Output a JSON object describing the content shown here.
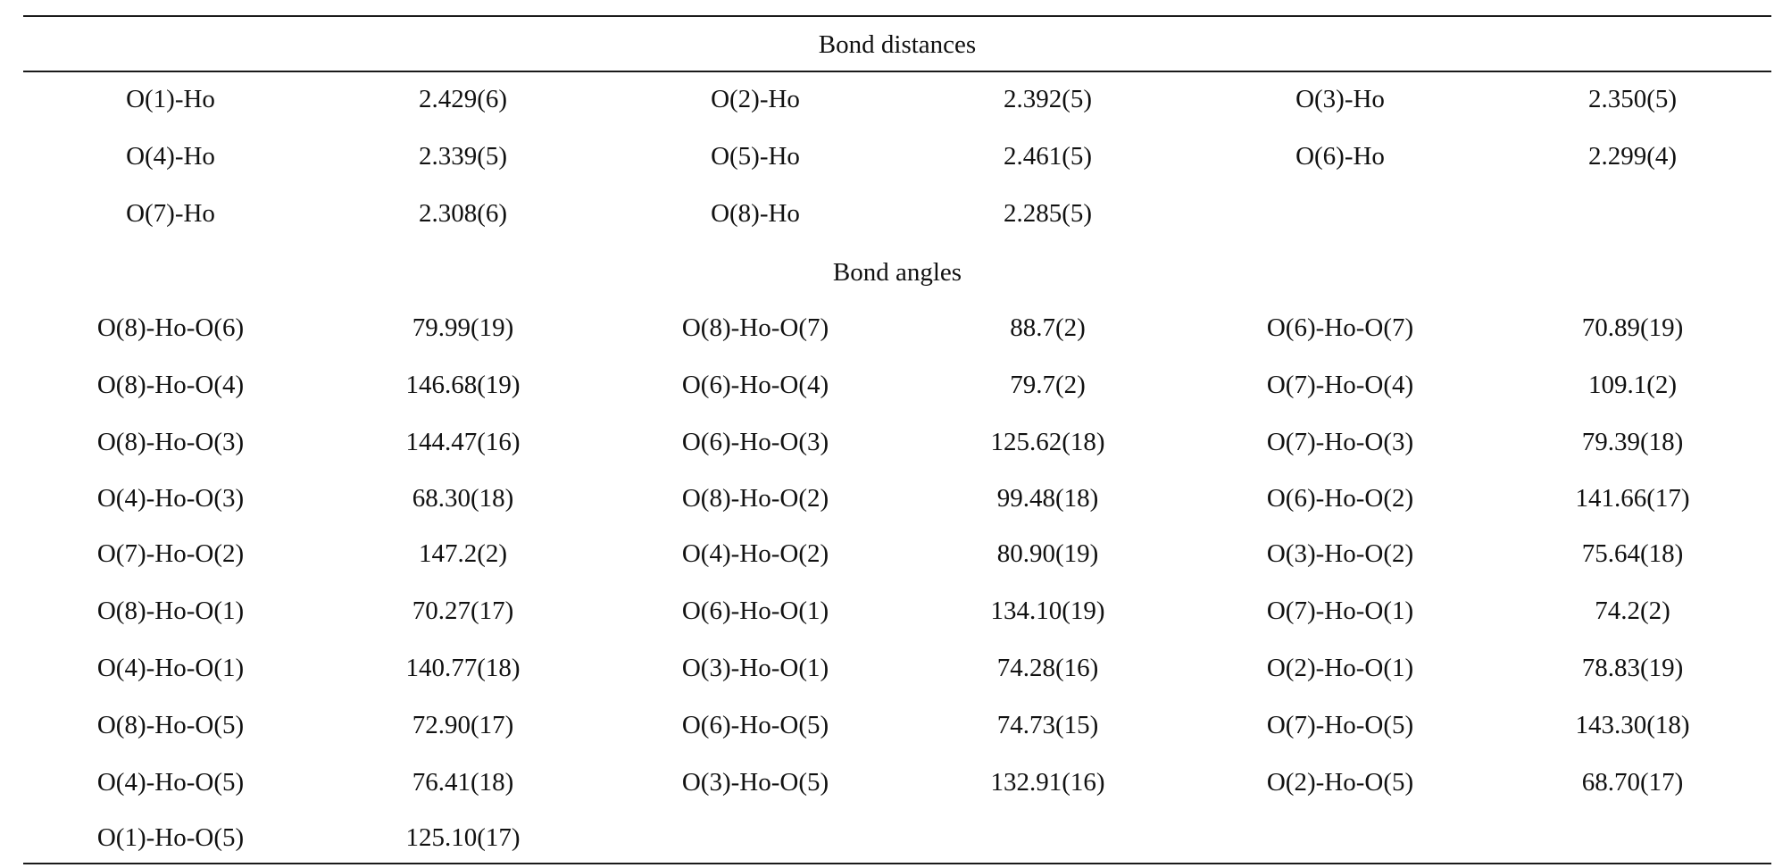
{
  "table": {
    "distances_title": "Bond distances",
    "angles_title": "Bond angles",
    "distances": [
      [
        "O(1)-Ho",
        "2.429(6)",
        "O(2)-Ho",
        "2.392(5)",
        "O(3)-Ho",
        "2.350(5)"
      ],
      [
        "O(4)-Ho",
        "2.339(5)",
        "O(5)-Ho",
        "2.461(5)",
        "O(6)-Ho",
        "2.299(4)"
      ],
      [
        "O(7)-Ho",
        "2.308(6)",
        "O(8)-Ho",
        "2.285(5)",
        "",
        ""
      ]
    ],
    "angles": [
      [
        "O(8)-Ho-O(6)",
        "79.99(19)",
        "O(8)-Ho-O(7)",
        "88.7(2)",
        "O(6)-Ho-O(7)",
        "70.89(19)"
      ],
      [
        "O(8)-Ho-O(4)",
        "146.68(19)",
        "O(6)-Ho-O(4)",
        "79.7(2)",
        "O(7)-Ho-O(4)",
        "109.1(2)"
      ],
      [
        "O(8)-Ho-O(3)",
        "144.47(16)",
        "O(6)-Ho-O(3)",
        "125.62(18)",
        "O(7)-Ho-O(3)",
        "79.39(18)"
      ],
      [
        "O(4)-Ho-O(3)",
        "68.30(18)",
        "O(8)-Ho-O(2)",
        "99.48(18)",
        "O(6)-Ho-O(2)",
        "141.66(17)"
      ],
      [
        "O(7)-Ho-O(2)",
        "147.2(2)",
        "O(4)-Ho-O(2)",
        "80.90(19)",
        "O(3)-Ho-O(2)",
        "75.64(18)"
      ],
      [
        "O(8)-Ho-O(1)",
        "70.27(17)",
        "O(6)-Ho-O(1)",
        "134.10(19)",
        "O(7)-Ho-O(1)",
        "74.2(2)"
      ],
      [
        "O(4)-Ho-O(1)",
        "140.77(18)",
        "O(3)-Ho-O(1)",
        "74.28(16)",
        "O(2)-Ho-O(1)",
        "78.83(19)"
      ],
      [
        "O(8)-Ho-O(5)",
        "72.90(17)",
        "O(6)-Ho-O(5)",
        "74.73(15)",
        "O(7)-Ho-O(5)",
        "143.30(18)"
      ],
      [
        "O(4)-Ho-O(5)",
        "76.41(18)",
        "O(3)-Ho-O(5)",
        "132.91(16)",
        "O(2)-Ho-O(5)",
        "68.70(17)"
      ],
      [
        "O(1)-Ho-O(5)",
        "125.10(17)",
        "",
        "",
        "",
        ""
      ]
    ]
  }
}
